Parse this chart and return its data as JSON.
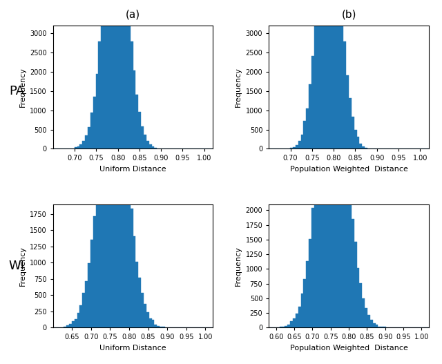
{
  "panels": [
    {
      "row": 0,
      "col": 0,
      "mean": 0.795,
      "std": 0.028,
      "n": 75000,
      "xlim": [
        0.65,
        1.02
      ],
      "ylim": [
        0,
        3200
      ],
      "yticks": [
        0,
        500,
        1000,
        1500,
        2000,
        2500,
        3000
      ],
      "xticks": [
        0.7,
        0.75,
        0.8,
        0.85,
        0.9,
        0.95,
        1.0
      ],
      "xlabel": "Uniform Distance",
      "ylabel": "Frequency",
      "bins": 60
    },
    {
      "row": 0,
      "col": 1,
      "mean": 0.79,
      "std": 0.026,
      "n": 75000,
      "xlim": [
        0.65,
        1.02
      ],
      "ylim": [
        0,
        3200
      ],
      "yticks": [
        0,
        500,
        1000,
        1500,
        2000,
        2500,
        3000
      ],
      "xticks": [
        0.7,
        0.75,
        0.8,
        0.85,
        0.9,
        0.95,
        1.0
      ],
      "xlabel": "Population Weighted  Distance",
      "ylabel": "Frequency",
      "bins": 60
    },
    {
      "row": 1,
      "col": 0,
      "mean": 0.758,
      "std": 0.038,
      "n": 55000,
      "xlim": [
        0.6,
        1.02
      ],
      "ylim": [
        0,
        1900
      ],
      "yticks": [
        0,
        250,
        500,
        750,
        1000,
        1250,
        1500,
        1750
      ],
      "xticks": [
        0.65,
        0.7,
        0.75,
        0.8,
        0.85,
        0.9,
        0.95,
        1.0
      ],
      "xlabel": "Uniform Distance",
      "ylabel": "Frequency",
      "bins": 60
    },
    {
      "row": 1,
      "col": 1,
      "mean": 0.755,
      "std": 0.04,
      "n": 68000,
      "xlim": [
        0.58,
        1.02
      ],
      "ylim": [
        0,
        2100
      ],
      "yticks": [
        0,
        250,
        500,
        750,
        1000,
        1250,
        1500,
        1750,
        2000
      ],
      "xticks": [
        0.6,
        0.65,
        0.7,
        0.75,
        0.8,
        0.85,
        0.9,
        0.95,
        1.0
      ],
      "xlabel": "Population Weighted  Distance",
      "ylabel": "Frequency",
      "bins": 60
    }
  ],
  "col_labels": [
    "(a)",
    "(b)"
  ],
  "row_labels": [
    "PA",
    "WI"
  ],
  "bar_color": "#1f77b4",
  "bar_edgecolor": "#1f77b4",
  "fig_width": 6.4,
  "fig_height": 5.27,
  "dpi": 100,
  "seed": 42
}
